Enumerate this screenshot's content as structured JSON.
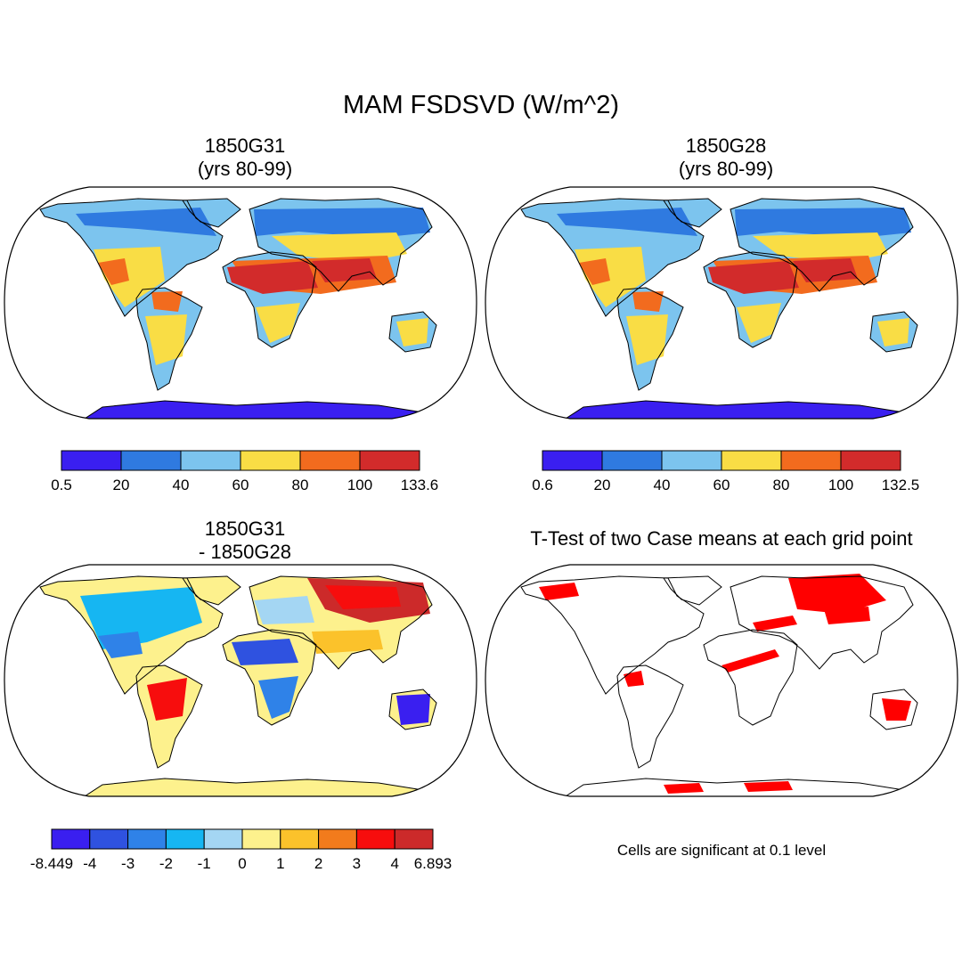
{
  "title": "MAM FSDSVD (W/m^2)",
  "colors": {
    "abs_scale": [
      "#3a1ff0",
      "#2f7ae0",
      "#7cc4ee",
      "#f9dd45",
      "#f26b1e",
      "#d22b2b"
    ],
    "diff_scale": [
      "#3a1ff0",
      "#2f52e0",
      "#2f82e8",
      "#16b6f2",
      "#a4d6f3",
      "#fdf18d",
      "#fbc22b",
      "#f27b1c",
      "#f70d0d",
      "#cc2a2a"
    ],
    "significance": "#ff0000",
    "ocean": "#ffffff",
    "coast": "#000000"
  },
  "panels": [
    {
      "id": "a",
      "title_line1": "1850G31",
      "title_line2": "(yrs 80-99)",
      "colorbar": {
        "labels": [
          "0.5",
          "20",
          "40",
          "60",
          "80",
          "100",
          "133.6"
        ]
      }
    },
    {
      "id": "b",
      "title_line1": "1850G28",
      "title_line2": "(yrs 80-99)",
      "colorbar": {
        "labels": [
          "0.6",
          "20",
          "40",
          "60",
          "80",
          "100",
          "132.5"
        ]
      }
    },
    {
      "id": "c",
      "title_line1": "1850G31",
      "title_line2": "- 1850G28",
      "colorbar": {
        "labels": [
          "-8.449",
          "-4",
          "-3",
          "-2",
          "-1",
          "0",
          "1",
          "2",
          "3",
          "4",
          "6.893"
        ]
      }
    },
    {
      "id": "d",
      "title_line1": "T-Test of two Case means at each grid point",
      "note": "Cells are significant at 0.1 level"
    }
  ]
}
